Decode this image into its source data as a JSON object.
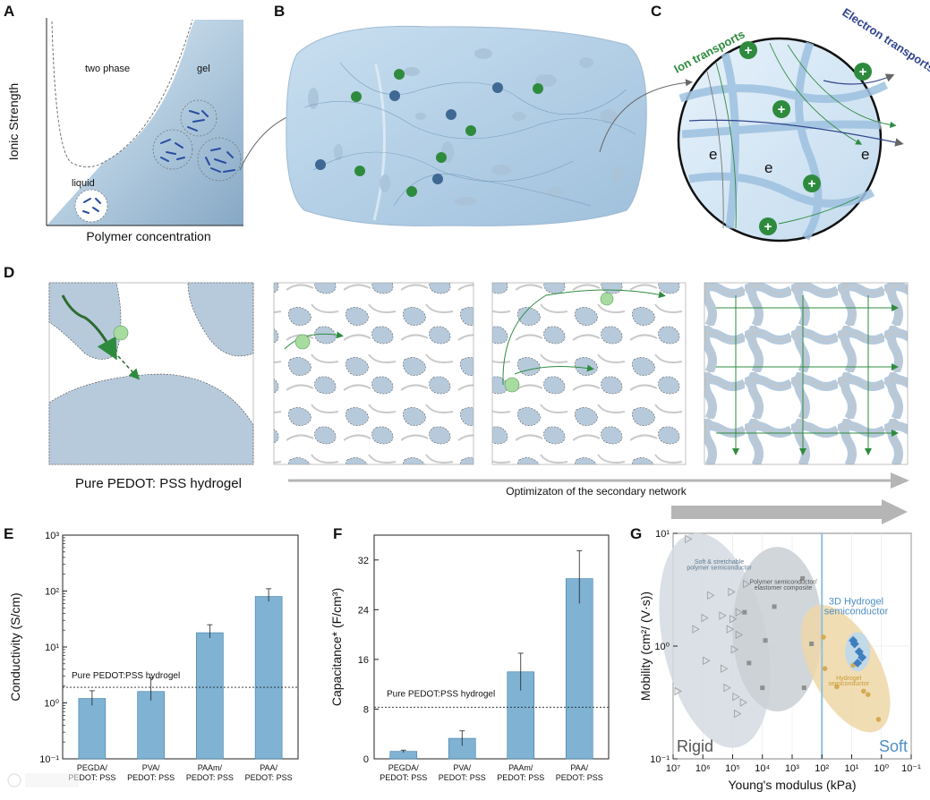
{
  "colors": {
    "bar": "#7fb2d3",
    "bar_stroke": "#3f7da5",
    "gel": "#a9c6de",
    "phase_gel_light": "#dcecf7",
    "ion": "#2e8b3e",
    "electron": "#31458d",
    "arrow_gray": "#b5b5b5",
    "rigid": "#d4dbe1",
    "hydrogel_semi": "#efd7a7",
    "hydrogel_semi_text": "#c79a35",
    "three_d": "#bcd8ec",
    "three_d_text": "#4d8fc4",
    "vline": "#8fc1e3"
  },
  "panel_labels": [
    "A",
    "B",
    "C",
    "D",
    "E",
    "F",
    "G"
  ],
  "panel_a": {
    "ylabel": "Ionic Strength",
    "xlabel": "Polymer concentration",
    "regions": {
      "two_phase": "two phase",
      "gel": "gel",
      "liquid": "liquid"
    }
  },
  "panel_c": {
    "ion_label": "Ion transports",
    "electron_label": "Electron transports",
    "electron_symbol": "e",
    "plus_symbol": "+"
  },
  "panel_d": {
    "caption": "Pure PEDOT: PSS hydrogel",
    "arrow_caption": "Optimizaton of the secondary network"
  },
  "charts": [
    {
      "type": "bar",
      "ylabel": "Conductivity (S/cm)",
      "yscale": "log",
      "ylim": [
        0.1,
        1000
      ],
      "categories": [
        [
          "PEGDA/",
          "PEDOT: PSS"
        ],
        [
          "PVA/",
          "PEDOT: PSS"
        ],
        [
          "PAAm/",
          "PEDOT: PSS"
        ],
        [
          "PAA/",
          "PEDOT: PSS"
        ]
      ],
      "values": [
        1.2,
        1.6,
        18,
        80
      ],
      "errors_low": [
        0.9,
        1.1,
        14.5,
        65
      ],
      "errors_high": [
        1.65,
        2.8,
        25,
        110
      ],
      "reference": {
        "label": "Pure PEDOT:PSS hydrogel",
        "value": 1.9
      }
    },
    {
      "type": "bar",
      "ylabel": "Capacitance* (F/cm³)",
      "yscale": "linear",
      "ylim": [
        0,
        36
      ],
      "ticks": [
        0,
        8,
        16,
        24,
        32
      ],
      "categories": [
        [
          "PEGDA/",
          "PEDOT: PSS"
        ],
        [
          "PVA/",
          "PEDOT: PSS"
        ],
        [
          "PAAm/",
          "PEDOT: PSS"
        ],
        [
          "PAA/",
          "PEDOT: PSS"
        ]
      ],
      "values": [
        1.2,
        3.3,
        14,
        29
      ],
      "errors_low": [
        1.0,
        2.1,
        11,
        25
      ],
      "errors_high": [
        1.4,
        4.5,
        17,
        33.5
      ],
      "reference": {
        "label": "Pure PEDOT:PSS hydrogel",
        "value": 8.3
      }
    },
    {
      "type": "scatter",
      "xlabel": "Young's modulus (kPa)",
      "ylabel": "Mobility (cm²/ (V·s))",
      "xlim_exp": [
        7,
        -1
      ],
      "ylim_exp": [
        -1,
        1
      ],
      "vline_exp": 2,
      "regions": {
        "soft_stretchable": [
          "Soft & stretchable",
          "polymer semiconductor"
        ],
        "composite": [
          "Polymer semiconductor/",
          "elastomer composite"
        ],
        "three_d": [
          "3D Hydrogel",
          "semiconductor"
        ],
        "hydrogel": [
          "Hydrogel",
          "semiconductor"
        ]
      },
      "rigid_label": "Rigid",
      "soft_label": "Soft",
      "triangle_points": [
        [
          6.5,
          0.95
        ],
        [
          6.25,
          0.15
        ],
        [
          5.9,
          -0.13
        ],
        [
          5.95,
          0.25
        ],
        [
          5.75,
          0.45
        ],
        [
          5.35,
          0.27
        ],
        [
          5.3,
          -0.2
        ],
        [
          5.2,
          -0.37
        ],
        [
          5.0,
          0.24
        ],
        [
          5.05,
          0.48
        ],
        [
          5.1,
          0.15
        ],
        [
          4.95,
          -0.03
        ],
        [
          4.8,
          0.1
        ],
        [
          4.8,
          0.3
        ],
        [
          4.9,
          -0.45
        ],
        [
          4.85,
          -0.6
        ],
        [
          6.85,
          -0.4
        ],
        [
          4.55,
          0.55
        ],
        [
          4.65,
          -0.5
        ]
      ],
      "square_points": [
        [
          4.6,
          0.3
        ],
        [
          4.45,
          -0.15
        ],
        [
          4.0,
          -0.37
        ],
        [
          3.9,
          0.05
        ],
        [
          3.6,
          0.35
        ],
        [
          2.65,
          0.6
        ],
        [
          2.6,
          -0.37
        ],
        [
          2.35,
          0.02
        ]
      ],
      "hydrogel_points": [
        [
          1.95,
          0.08
        ],
        [
          1.9,
          -0.2
        ],
        [
          1.5,
          -0.36
        ],
        [
          0.95,
          -0.17
        ],
        [
          0.6,
          -0.4
        ],
        [
          0.45,
          -0.43
        ],
        [
          0.1,
          -0.65
        ]
      ],
      "three_d_points": [
        [
          0.95,
          0.05
        ],
        [
          0.75,
          -0.05
        ],
        [
          0.8,
          -0.15
        ],
        [
          0.65,
          -0.1
        ],
        [
          0.9,
          0.02
        ]
      ]
    }
  ],
  "ticks_log_e": [
    "10⁻¹",
    "10⁰",
    "10¹",
    "10²",
    "10³"
  ],
  "ticks_log_g_y": [
    "10⁻¹",
    "10⁰",
    "10¹"
  ],
  "ticks_log_g_x": [
    "10⁷",
    "10⁶",
    "10⁵",
    "10⁴",
    "10³",
    "10²",
    "10¹",
    "10⁰",
    "10⁻¹"
  ]
}
